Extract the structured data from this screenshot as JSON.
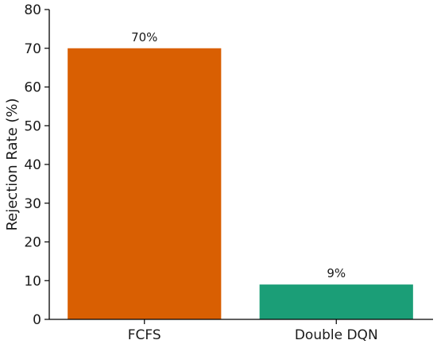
{
  "chart_data": {
    "type": "bar",
    "title": "",
    "xlabel": "",
    "ylabel": "Rejection Rate (%)",
    "categories": [
      "FCFS",
      "Double DQN"
    ],
    "values": [
      70,
      9
    ],
    "data_labels": [
      "70%",
      "9%"
    ],
    "bar_colors": [
      "#d95f02",
      "#1b9e77"
    ],
    "ylim": [
      0,
      80
    ],
    "yticks": [
      0,
      10,
      20,
      30,
      40,
      50,
      60,
      70,
      80
    ],
    "grid": false,
    "legend": "none"
  }
}
